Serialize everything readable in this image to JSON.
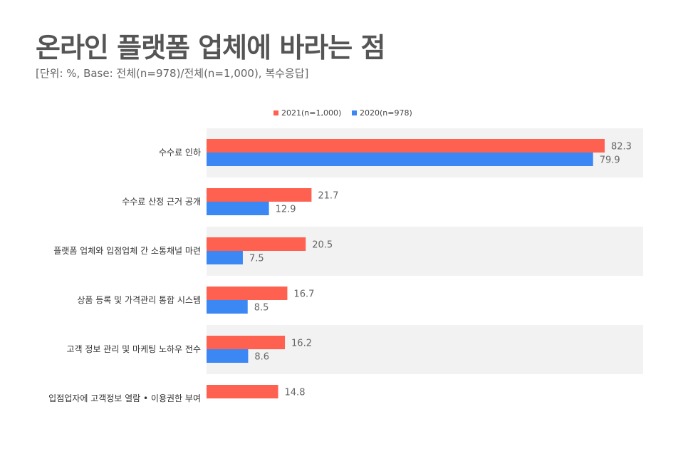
{
  "title": "온라인 플랫폼 업체에 바라는 점",
  "subtitle": "[단위: %, Base: 전체(n=978)/전체(n=1,000), 복수응답]",
  "colors": {
    "series_2021": "#FF6150",
    "series_2020": "#3B87F4",
    "band": "#F2F2F2"
  },
  "chart_data": {
    "type": "bar",
    "orientation": "horizontal",
    "categories": [
      "수수료 인하",
      "수수료 산정 근거 공개",
      "플랫폼 업체와 입점업체 간 소통채널 마련",
      "상품 등록 및 가격관리 통합 시스템",
      "고객 정보 관리 및 마케팅 노하우 전수",
      "입점업자에 고객정보 열람 • 이용권한 부여"
    ],
    "series": [
      {
        "name": "2021(n=1,000)",
        "values": [
          82.3,
          21.7,
          20.5,
          16.7,
          16.2,
          14.8
        ]
      },
      {
        "name": "2020(n=978)",
        "values": [
          79.9,
          12.9,
          7.5,
          8.5,
          8.6,
          null
        ]
      }
    ],
    "value_labels": [
      [
        "82.3",
        "21.7",
        "20.5",
        "16.7",
        "16.2",
        "14.8"
      ],
      [
        "79.9",
        "12.9",
        "7.5",
        "8.5",
        "8.6",
        ""
      ]
    ],
    "xlim": [
      0,
      92
    ],
    "legend_position": "top"
  }
}
